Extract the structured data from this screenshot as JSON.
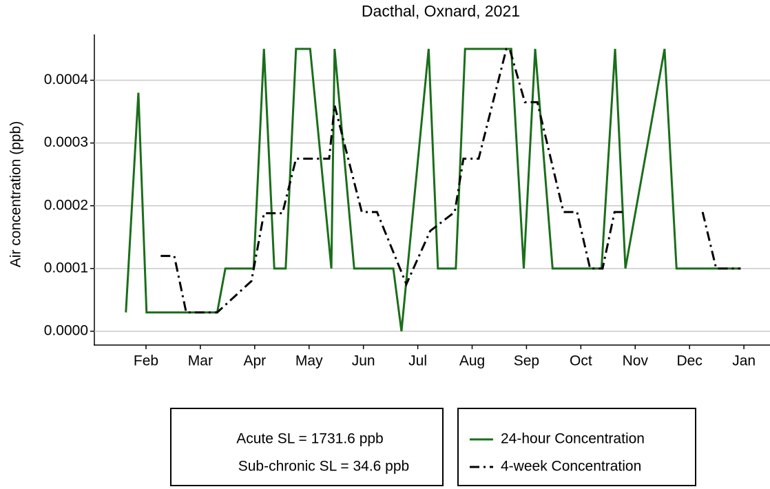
{
  "chart_data": {
    "type": "line",
    "title": "Dacthal, Oxnard, 2021",
    "y_label": "Air concentration  (ppb)",
    "xlim": [
      1.05,
      13.48
    ],
    "xticks": [
      {
        "value": 2,
        "label": "Feb"
      },
      {
        "value": 3,
        "label": "Mar"
      },
      {
        "value": 4,
        "label": "Apr"
      },
      {
        "value": 5,
        "label": "May"
      },
      {
        "value": 6,
        "label": "Jun"
      },
      {
        "value": 7,
        "label": "Jul"
      },
      {
        "value": 8,
        "label": "Aug"
      },
      {
        "value": 9,
        "label": "Sep"
      },
      {
        "value": 10,
        "label": "Oct"
      },
      {
        "value": 11,
        "label": "Nov"
      },
      {
        "value": 12,
        "label": "Dec"
      },
      {
        "value": 13,
        "label": "Jan"
      }
    ],
    "ylim": [
      -2.2e-05,
      0.000473
    ],
    "yticks": [
      {
        "value": 0,
        "label": "0.0000"
      },
      {
        "value": 0.0001,
        "label": "0.0001"
      },
      {
        "value": 0.0002,
        "label": "0.0002"
      },
      {
        "value": 0.0003,
        "label": "0.0003"
      },
      {
        "value": 0.0004,
        "label": "0.0004"
      }
    ],
    "grid": true,
    "annotations": [
      "Acute SL = 1731.6 ppb",
      "Sub-chronic SL = 34.6 ppb"
    ],
    "series": [
      {
        "name": "24-hour Concentration",
        "color": "#1a6e1a",
        "style": "solid",
        "x": [
          1.63,
          1.86,
          2.01,
          3.31,
          3.46,
          3.98,
          4.17,
          4.36,
          4.57,
          4.76,
          5.02,
          5.41,
          5.47,
          5.83,
          6.55,
          6.7,
          7.2,
          7.37,
          7.7,
          7.87,
          8.72,
          8.95,
          9.16,
          9.48,
          10.38,
          10.63,
          10.82,
          11.54,
          11.76,
          12.94
        ],
        "values": [
          3e-05,
          0.00038,
          3e-05,
          3e-05,
          0.0001,
          0.0001,
          0.00045,
          0.0001,
          0.0001,
          0.00045,
          0.00045,
          0.0001,
          0.00045,
          0.0001,
          0.0001,
          0.0,
          0.00045,
          0.0001,
          0.0001,
          0.00045,
          0.00045,
          0.0001,
          0.00045,
          0.0001,
          0.0001,
          0.00045,
          0.0001,
          0.00045,
          0.0001,
          0.0001
        ]
      },
      {
        "name": "4-week Concentration",
        "color": "#000000",
        "style": "dashdot",
        "x": [
          2.27,
          2.52,
          2.74,
          3.31,
          3.94,
          4.17,
          4.51,
          4.76,
          5.37,
          5.47,
          5.97,
          6.25,
          6.79,
          7.23,
          7.68,
          7.84,
          8.12,
          8.63,
          8.69,
          8.97,
          9.2,
          9.68,
          9.93,
          10.17,
          10.4,
          10.62,
          10.82,
          null,
          12.24,
          12.49,
          12.94
        ],
        "values": [
          0.00012,
          0.00012,
          3e-05,
          3e-05,
          8e-05,
          0.000188,
          0.000188,
          0.000275,
          0.000275,
          0.00036,
          0.00019,
          0.00019,
          7.5e-05,
          0.00016,
          0.00019,
          0.000275,
          0.000275,
          0.00045,
          0.00045,
          0.000365,
          0.000365,
          0.00019,
          0.00019,
          0.0001,
          0.0001,
          0.00019,
          0.00019,
          null,
          0.00019,
          0.0001,
          0.0001
        ]
      }
    ]
  }
}
